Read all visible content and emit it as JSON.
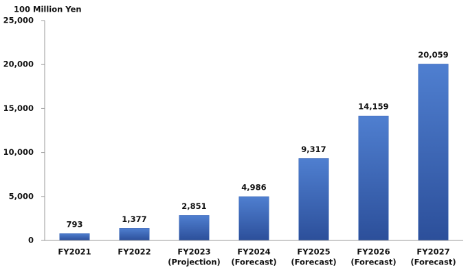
{
  "chart_data": {
    "type": "bar",
    "y_label": "100 Million Yen",
    "categories": [
      [
        "FY2021"
      ],
      [
        "FY2022"
      ],
      [
        "FY2023",
        "(Projection)"
      ],
      [
        "FY2024",
        "(Forecast)"
      ],
      [
        "FY2025",
        "(Forecast)"
      ],
      [
        "FY2026",
        "(Forecast)"
      ],
      [
        "FY2027",
        "(Forecast)"
      ]
    ],
    "values": [
      793,
      1377,
      2851,
      4986,
      9317,
      14159,
      20059
    ],
    "value_labels": [
      "793",
      "1,377",
      "2,851",
      "4,986",
      "9,317",
      "14,159",
      "20,059"
    ],
    "color": "#3a64b4",
    "ylim": [
      0,
      25000
    ],
    "yticks": [
      0,
      {
        "value": 5000,
        "label": "5,000"
      },
      {
        "value": 10000,
        "label": "10,000"
      },
      {
        "value": 15000,
        "label": "15,000"
      },
      {
        "value": 20000,
        "label": "20,000"
      },
      {
        "value": 25000,
        "label": "25,000"
      }
    ],
    "grid": false
  }
}
